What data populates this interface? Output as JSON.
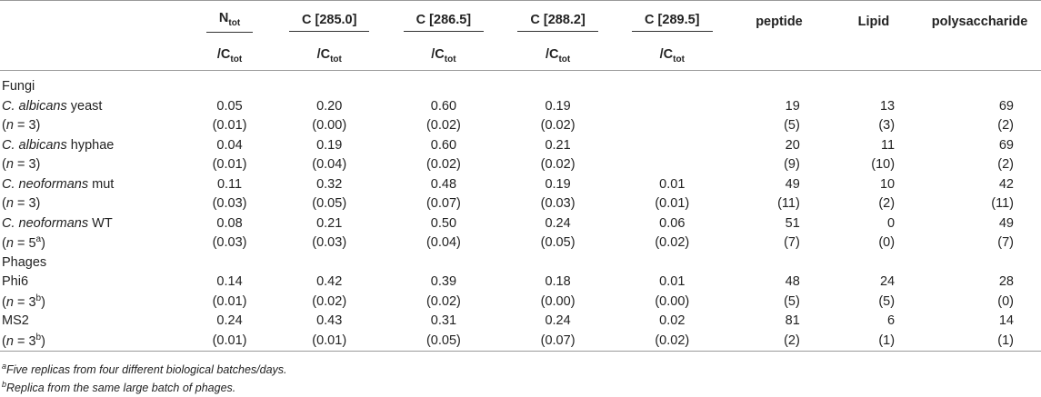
{
  "header": {
    "col1": {
      "top": "N",
      "top_sub": "tot",
      "bot": "/C",
      "bot_sub": "tot"
    },
    "col2": {
      "top": "C [285.0]",
      "bot": "/C",
      "bot_sub": "tot"
    },
    "col3": {
      "top": "C [286.5]",
      "bot": "/C",
      "bot_sub": "tot"
    },
    "col4": {
      "top": "C [288.2]",
      "bot": "/C",
      "bot_sub": "tot"
    },
    "col5": {
      "top": "C [289.5]",
      "bot": "/C",
      "bot_sub": "tot"
    },
    "col6": "peptide",
    "col7": "Lipid",
    "col8": "polysaccharide"
  },
  "groups": {
    "fungi": "Fungi",
    "phages": "Phages"
  },
  "rows": {
    "ca_yeast": {
      "genus": "C. albicans",
      "rest": " yeast",
      "v": [
        "0.05",
        "0.20",
        "0.60",
        "0.19",
        "",
        "19",
        "13",
        "69"
      ]
    },
    "ca_yeast_sd": {
      "n_italic": "n",
      "n_rest": " = 3)",
      "v": [
        "(0.01)",
        "(0.00)",
        "(0.02)",
        "(0.02)",
        "",
        "(5)",
        "(3)",
        "(2)"
      ]
    },
    "ca_hyphae": {
      "genus": "C. albicans",
      "rest": " hyphae",
      "v": [
        "0.04",
        "0.19",
        "0.60",
        "0.21",
        "",
        "20",
        "11",
        "69"
      ]
    },
    "ca_hyphae_sd": {
      "n_italic": "n",
      "n_rest": " = 3)",
      "v": [
        "(0.01)",
        "(0.04)",
        "(0.02)",
        "(0.02)",
        "",
        "(9)",
        "(10)",
        "(2)"
      ]
    },
    "cn_mut": {
      "genus": "C. neoformans",
      "rest": " mut",
      "v": [
        "0.11",
        "0.32",
        "0.48",
        "0.19",
        "0.01",
        "49",
        "10",
        "42"
      ]
    },
    "cn_mut_sd": {
      "n_italic": "n",
      "n_rest": " = 3)",
      "v": [
        "(0.03)",
        "(0.05)",
        "(0.07)",
        "(0.03)",
        "(0.01)",
        "(11)",
        "(2)",
        "(11)"
      ]
    },
    "cn_wt": {
      "genus": "C. neoformans",
      "rest": " WT",
      "v": [
        "0.08",
        "0.21",
        "0.50",
        "0.24",
        "0.06",
        "51",
        "0",
        "49"
      ]
    },
    "cn_wt_sd": {
      "n_italic": "n",
      "n_rest": " = 5",
      "n_sup": "a",
      "n_close": ")",
      "v": [
        "(0.03)",
        "(0.03)",
        "(0.04)",
        "(0.05)",
        "(0.02)",
        "(7)",
        "(0)",
        "(7)"
      ]
    },
    "phi6": {
      "label": "Phi6",
      "v": [
        "0.14",
        "0.42",
        "0.39",
        "0.18",
        "0.01",
        "48",
        "24",
        "28"
      ]
    },
    "phi6_sd": {
      "n_italic": "n",
      "n_rest": " = 3",
      "n_sup": "b",
      "n_close": ")",
      "v": [
        "(0.01)",
        "(0.02)",
        "(0.02)",
        "(0.00)",
        "(0.00)",
        "(5)",
        "(5)",
        "(0)"
      ]
    },
    "ms2": {
      "label": "MS2",
      "v": [
        "0.24",
        "0.43",
        "0.31",
        "0.24",
        "0.02",
        "81",
        "6",
        "14"
      ]
    },
    "ms2_sd": {
      "n_italic": "n",
      "n_rest": " = 3",
      "n_sup": "b",
      "n_close": ")",
      "v": [
        "(0.01)",
        "(0.01)",
        "(0.05)",
        "(0.07)",
        "(0.02)",
        "(2)",
        "(1)",
        "(1)"
      ]
    }
  },
  "footnotes": {
    "a_mark": "a",
    "a_text": "Five replicas from four different biological batches/days.",
    "b_mark": "b",
    "b_text": "Replica from the same large batch of phages."
  }
}
